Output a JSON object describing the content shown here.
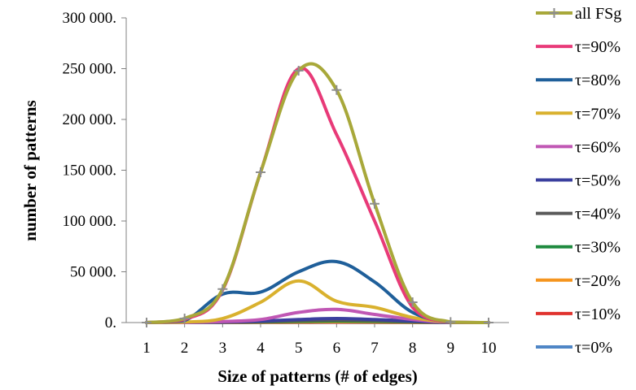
{
  "chart_data": {
    "type": "line",
    "title": "",
    "xlabel": "Size of patterns (# of edges)",
    "ylabel": "number of patterns",
    "x": [
      1,
      2,
      3,
      4,
      5,
      6,
      7,
      8,
      9,
      10
    ],
    "xticks": [
      "1",
      "2",
      "3",
      "4",
      "5",
      "6",
      "7",
      "8",
      "9",
      "10"
    ],
    "ylim": [
      0,
      300000
    ],
    "yticks": [
      {
        "value": 0,
        "label": "0."
      },
      {
        "value": 50000,
        "label": "50 000."
      },
      {
        "value": 100000,
        "label": "100 000."
      },
      {
        "value": 150000,
        "label": "150 000."
      },
      {
        "value": 200000,
        "label": "200 000."
      },
      {
        "value": 250000,
        "label": "250 000."
      },
      {
        "value": 300000,
        "label": "300 000."
      }
    ],
    "grid": false,
    "legend_position": "right",
    "series": [
      {
        "name": "all FSg",
        "color": "#A8A83A",
        "marker": "plus",
        "values": [
          0,
          4000,
          33000,
          148000,
          248000,
          229000,
          117000,
          20000,
          500,
          0
        ]
      },
      {
        "name": "τ=90%",
        "color": "#E83A78",
        "marker": "none",
        "values": [
          0,
          3000,
          32000,
          148000,
          250000,
          185000,
          100000,
          15000,
          400,
          0
        ]
      },
      {
        "name": "τ=80%",
        "color": "#1F5F9A",
        "marker": "none",
        "values": [
          0,
          2000,
          28000,
          30000,
          50000,
          60000,
          40000,
          10000,
          300,
          0
        ]
      },
      {
        "name": "τ=70%",
        "color": "#D9B12E",
        "marker": "none",
        "values": [
          0,
          500,
          4000,
          20000,
          41000,
          21000,
          15000,
          5000,
          200,
          0
        ]
      },
      {
        "name": "τ=60%",
        "color": "#C057B4",
        "marker": "none",
        "values": [
          0,
          100,
          1000,
          3000,
          10000,
          13000,
          8000,
          3000,
          100,
          0
        ]
      },
      {
        "name": "τ=50%",
        "color": "#3A3F9E",
        "marker": "none",
        "values": [
          0,
          50,
          500,
          1500,
          3000,
          4000,
          3000,
          1500,
          50,
          0
        ]
      },
      {
        "name": "τ=40%",
        "color": "#5A5A5A",
        "marker": "none",
        "values": [
          0,
          30,
          300,
          1000,
          2000,
          2500,
          2000,
          1000,
          30,
          0
        ]
      },
      {
        "name": "τ=30%",
        "color": "#1E8A3E",
        "marker": "none",
        "values": [
          0,
          20,
          200,
          600,
          1200,
          1500,
          1200,
          600,
          20,
          0
        ]
      },
      {
        "name": "τ=20%",
        "color": "#F5951F",
        "marker": "none",
        "values": [
          0,
          10,
          100,
          300,
          600,
          800,
          600,
          300,
          10,
          0
        ]
      },
      {
        "name": "τ=10%",
        "color": "#E0322E",
        "marker": "none",
        "values": [
          0,
          5,
          50,
          150,
          300,
          400,
          300,
          150,
          5,
          0
        ]
      },
      {
        "name": "τ=0%",
        "color": "#4F86C6",
        "marker": "none",
        "values": [
          0,
          2,
          20,
          60,
          120,
          160,
          120,
          60,
          2,
          0
        ]
      }
    ]
  }
}
